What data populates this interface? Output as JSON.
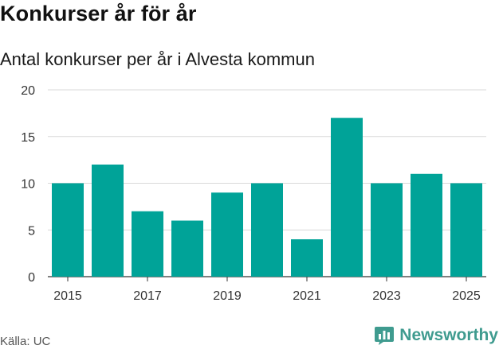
{
  "header": {
    "title": "Konkurser år för år",
    "subtitle": "Antal konkurser per år i Alvesta kommun"
  },
  "footer": {
    "source": "Källa: UC",
    "brand": "Newsworthy"
  },
  "colors": {
    "bar": "#00a398",
    "grid": "#d9d9d9",
    "brand": "#3f9b8f"
  },
  "chart_data": {
    "type": "bar",
    "categories": [
      "2015",
      "2016",
      "2017",
      "2018",
      "2019",
      "2020",
      "2021",
      "2022",
      "2023",
      "2024",
      "2025"
    ],
    "values": [
      10,
      12,
      7,
      6,
      9,
      10,
      4,
      17,
      10,
      11,
      10
    ],
    "x_tick_labels": [
      "2015",
      "2017",
      "2019",
      "2021",
      "2023",
      "2025"
    ],
    "y_ticks": [
      0,
      5,
      10,
      15,
      20
    ],
    "ylim": [
      0,
      20
    ],
    "title": "Konkurser år för år",
    "subtitle": "Antal konkurser per år i Alvesta kommun",
    "xlabel": "",
    "ylabel": "",
    "grid": true
  }
}
